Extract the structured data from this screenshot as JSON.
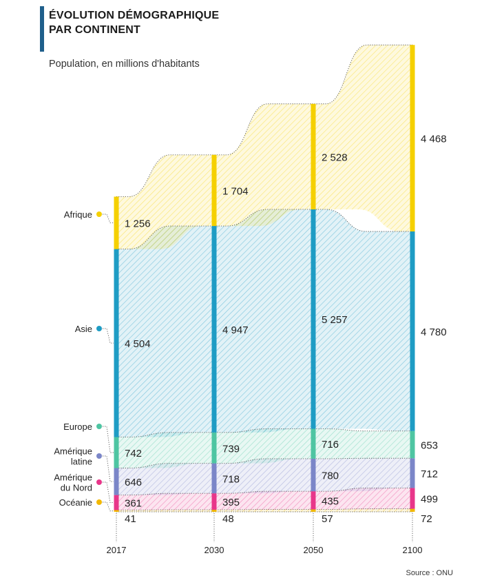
{
  "title": "ÉVOLUTION DÉMOGRAPHIQUE PAR CONTINENT",
  "subtitle": "Population, en millions d'habitants",
  "source": "Source : ONU",
  "colors": {
    "Afrique": "#f5d000",
    "Asie": "#1e9cc4",
    "Europe": "#4ec5a2",
    "Amérique latine": "#7b86c8",
    "Amérique du Nord": "#e8368a",
    "Océanie": "#f2b800",
    "title_bar": "#1f5f8b"
  },
  "chart_data": {
    "type": "area",
    "stacked": true,
    "x": [
      "2017",
      "2030",
      "2050",
      "2100"
    ],
    "series": [
      {
        "name": "Océanie",
        "values": [
          41,
          48,
          57,
          72
        ]
      },
      {
        "name": "Amérique du Nord",
        "values": [
          361,
          395,
          435,
          499
        ]
      },
      {
        "name": "Amérique latine",
        "values": [
          646,
          718,
          780,
          712
        ]
      },
      {
        "name": "Europe",
        "values": [
          742,
          739,
          716,
          653
        ]
      },
      {
        "name": "Asie",
        "values": [
          4504,
          4947,
          5257,
          4780
        ]
      },
      {
        "name": "Afrique",
        "values": [
          1256,
          1704,
          2528,
          4468
        ]
      }
    ],
    "legend": [
      {
        "name": "Afrique",
        "lines": [
          "Afrique"
        ]
      },
      {
        "name": "Asie",
        "lines": [
          "Asie"
        ]
      },
      {
        "name": "Europe",
        "lines": [
          "Europe"
        ]
      },
      {
        "name": "Amérique latine",
        "lines": [
          "Amérique",
          "latine"
        ]
      },
      {
        "name": "Amérique du Nord",
        "lines": [
          "Amérique",
          "du Nord"
        ]
      },
      {
        "name": "Océanie",
        "lines": [
          "Océanie"
        ]
      }
    ],
    "value_labels": {
      "Océanie": [
        "41",
        "48",
        "57",
        "72"
      ],
      "Amérique du Nord": [
        "361",
        "395",
        "435",
        "499"
      ],
      "Amérique latine": [
        "646",
        "718",
        "780",
        "712"
      ],
      "Europe": [
        "742",
        "739",
        "716",
        "653"
      ],
      "Asie": [
        "4 504",
        "4 947",
        "5 257",
        "4 780"
      ],
      "Afrique": [
        "1 256",
        "1 704",
        "2 528",
        "4 468"
      ]
    },
    "legend_placement": "left",
    "grid": false
  }
}
